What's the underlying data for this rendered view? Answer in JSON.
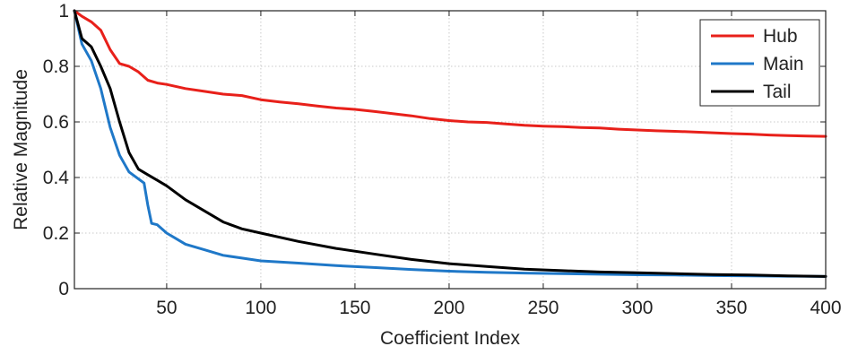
{
  "chart_data": {
    "type": "line",
    "title": "",
    "xlabel": "Coefficient Index",
    "ylabel": "Relative Magnitude",
    "xlim": [
      1,
      400
    ],
    "ylim": [
      0,
      1
    ],
    "xticks": [
      50,
      100,
      150,
      200,
      250,
      300,
      350,
      400
    ],
    "yticks": [
      0,
      0.2,
      0.4,
      0.6,
      0.8,
      1
    ],
    "ytick_labels": [
      "0",
      "0.2",
      "0.4",
      "0.6",
      "0.8",
      "1"
    ],
    "grid": true,
    "legend_position": "top-right",
    "series": [
      {
        "name": "Hub",
        "color": "#e8201a",
        "x": [
          1,
          5,
          10,
          15,
          20,
          25,
          30,
          35,
          40,
          45,
          50,
          60,
          70,
          80,
          90,
          100,
          110,
          120,
          130,
          140,
          150,
          160,
          170,
          180,
          190,
          200,
          210,
          220,
          230,
          240,
          250,
          260,
          270,
          280,
          290,
          300,
          310,
          320,
          330,
          340,
          350,
          360,
          370,
          380,
          390,
          400
        ],
        "y": [
          1.0,
          0.98,
          0.96,
          0.93,
          0.86,
          0.81,
          0.8,
          0.78,
          0.75,
          0.74,
          0.735,
          0.72,
          0.71,
          0.7,
          0.695,
          0.68,
          0.672,
          0.665,
          0.657,
          0.65,
          0.645,
          0.638,
          0.63,
          0.622,
          0.612,
          0.605,
          0.6,
          0.598,
          0.593,
          0.588,
          0.585,
          0.583,
          0.58,
          0.578,
          0.574,
          0.571,
          0.568,
          0.566,
          0.564,
          0.561,
          0.558,
          0.556,
          0.553,
          0.551,
          0.549,
          0.548
        ]
      },
      {
        "name": "Main",
        "color": "#1f78c8",
        "x": [
          1,
          5,
          10,
          15,
          20,
          25,
          30,
          35,
          38,
          40,
          42,
          45,
          50,
          55,
          60,
          70,
          80,
          90,
          100,
          120,
          140,
          160,
          180,
          200,
          220,
          240,
          260,
          280,
          300,
          320,
          340,
          360,
          380,
          400
        ],
        "y": [
          1.0,
          0.88,
          0.82,
          0.72,
          0.58,
          0.48,
          0.42,
          0.395,
          0.38,
          0.3,
          0.235,
          0.23,
          0.2,
          0.18,
          0.16,
          0.14,
          0.12,
          0.11,
          0.1,
          0.092,
          0.083,
          0.076,
          0.069,
          0.063,
          0.059,
          0.056,
          0.054,
          0.052,
          0.05,
          0.049,
          0.047,
          0.046,
          0.045,
          0.044
        ]
      },
      {
        "name": "Tail",
        "color": "#000000",
        "x": [
          1,
          5,
          10,
          15,
          20,
          25,
          30,
          35,
          40,
          45,
          50,
          60,
          70,
          80,
          90,
          100,
          120,
          140,
          160,
          180,
          200,
          220,
          240,
          260,
          280,
          300,
          320,
          340,
          360,
          380,
          400
        ],
        "y": [
          1.0,
          0.9,
          0.87,
          0.8,
          0.72,
          0.6,
          0.49,
          0.43,
          0.41,
          0.39,
          0.37,
          0.32,
          0.28,
          0.24,
          0.215,
          0.2,
          0.17,
          0.145,
          0.125,
          0.105,
          0.09,
          0.08,
          0.07,
          0.065,
          0.06,
          0.057,
          0.054,
          0.051,
          0.049,
          0.046,
          0.044
        ]
      }
    ]
  }
}
